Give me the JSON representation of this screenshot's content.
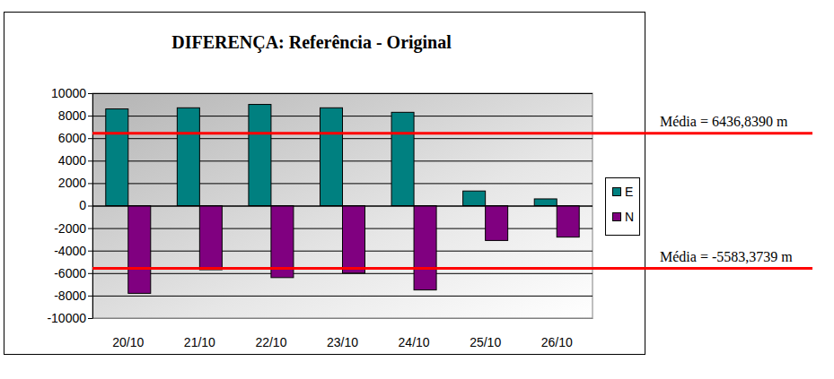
{
  "chart_data": {
    "type": "bar",
    "title": "DIFERENÇA: Referência - Original",
    "categories": [
      "20/10",
      "21/10",
      "22/10",
      "23/10",
      "24/10",
      "25/10",
      "26/10"
    ],
    "series": [
      {
        "name": "E",
        "color": "#008080",
        "values": [
          8600,
          8700,
          9000,
          8700,
          8300,
          1300,
          600
        ]
      },
      {
        "name": "N",
        "color": "#800080",
        "values": [
          -7800,
          -5700,
          -6400,
          -6000,
          -7500,
          -3100,
          -2800
        ]
      }
    ],
    "ylim": [
      -10000,
      10000
    ],
    "yticks": [
      -10000,
      -8000,
      -6000,
      -4000,
      -2000,
      0,
      2000,
      4000,
      6000,
      8000,
      10000
    ],
    "grid": true,
    "legend": "right",
    "annotations": [
      {
        "label": "Média = 6436,8390 m",
        "value": 6436.839
      },
      {
        "label": "Média = -5583,3739 m",
        "value": -5583.3739
      }
    ]
  }
}
